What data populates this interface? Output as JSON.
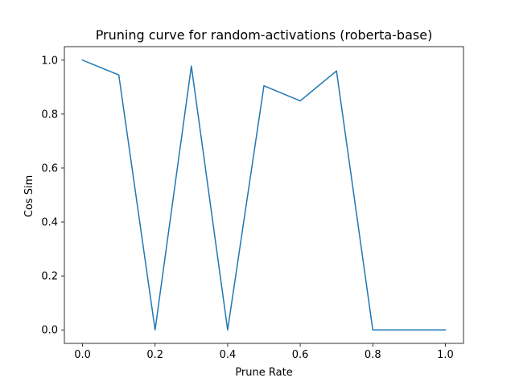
{
  "chart_data": {
    "type": "line",
    "title": "Pruning curve for random-activations (roberta-base)",
    "xlabel": "Prune Rate",
    "ylabel": "Cos Sim",
    "xlim": [
      -0.05,
      1.05
    ],
    "ylim": [
      -0.05,
      1.05
    ],
    "xticks": [
      0.0,
      0.2,
      0.4,
      0.6,
      0.8,
      1.0
    ],
    "xtick_labels": [
      "0.0",
      "0.2",
      "0.4",
      "0.6",
      "0.8",
      "1.0"
    ],
    "yticks": [
      0.0,
      0.2,
      0.4,
      0.6,
      0.8,
      1.0
    ],
    "ytick_labels": [
      "0.0",
      "0.2",
      "0.4",
      "0.6",
      "0.8",
      "1.0"
    ],
    "grid": false,
    "series": [
      {
        "color": "#1f77b4",
        "x": [
          0.0,
          0.1,
          0.2,
          0.3,
          0.4,
          0.5,
          0.6,
          0.7,
          0.8,
          0.9,
          1.0
        ],
        "y": [
          1.0,
          0.945,
          0.0,
          0.978,
          0.0,
          0.905,
          0.849,
          0.96,
          0.0,
          0.0,
          0.0
        ]
      }
    ]
  }
}
